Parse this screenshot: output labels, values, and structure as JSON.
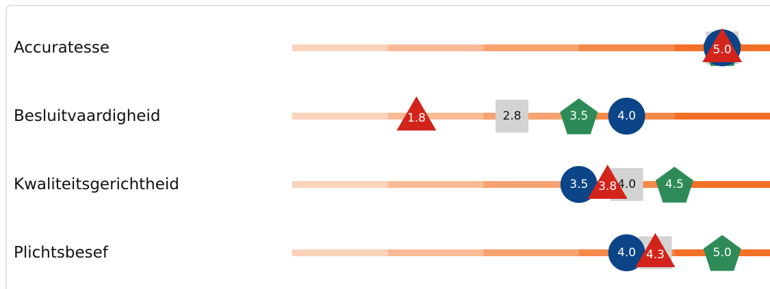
{
  "scale": [
    0.5,
    5.5
  ],
  "segment_colors": [
    "#fbd3ba",
    "#f9bb96",
    "#f6a271",
    "#f4894a",
    "#f27127"
  ],
  "marker_colors": {
    "circle": "#0b4487",
    "triangle": "#d3241c",
    "square": "#d3d3d3",
    "pentagon": "#2e8b57"
  },
  "rows": [
    {
      "label": "Accuratesse",
      "markers": {
        "square": {
          "value": 5,
          "label": "5.0"
        },
        "pentagon": {
          "value": 5,
          "label": "5.0"
        },
        "circle": {
          "value": 5,
          "label": "5.0"
        },
        "triangle": {
          "value": 5,
          "label": "5.0"
        }
      }
    },
    {
      "label": "Besluitvaardigheid",
      "markers": {
        "square": {
          "value": 2.8,
          "label": "2.8"
        },
        "pentagon": {
          "value": 3.5,
          "label": "3.5"
        },
        "circle": {
          "value": 4,
          "label": "4.0"
        },
        "triangle": {
          "value": 1.8,
          "label": "1.8"
        }
      }
    },
    {
      "label": "Kwaliteitsgerichtheid",
      "markers": {
        "square": {
          "value": 4,
          "label": "4.0"
        },
        "pentagon": {
          "value": 4.5,
          "label": "4.5"
        },
        "circle": {
          "value": 3.5,
          "label": "3.5"
        },
        "triangle": {
          "value": 3.8,
          "label": "3.8"
        }
      }
    },
    {
      "label": "Plichtsbesef",
      "markers": {
        "square": {
          "value": 4.3,
          "label": "4.3"
        },
        "pentagon": {
          "value": 5,
          "label": "5.0"
        },
        "circle": {
          "value": 4,
          "label": "4.0"
        },
        "triangle": {
          "value": 4.3,
          "label": "4.3"
        }
      }
    }
  ]
}
